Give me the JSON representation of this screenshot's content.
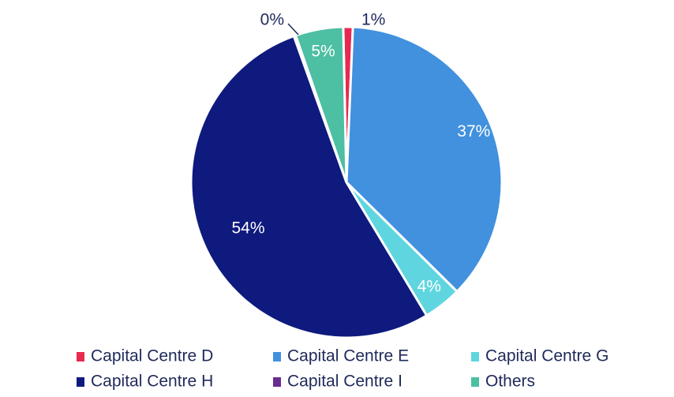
{
  "chart_data": {
    "type": "pie",
    "title": "",
    "slices": [
      {
        "label": "Capital Centre D",
        "value": 1,
        "display": "1%",
        "color": "#e8294f",
        "label_color": "#1f2a5a",
        "label_pos": "outside"
      },
      {
        "label": "Capital Centre E",
        "value": 37,
        "display": "37%",
        "color": "#4191de",
        "label_color": "#ffffff",
        "label_pos": "inside"
      },
      {
        "label": "Capital Centre G",
        "value": 4,
        "display": "4%",
        "color": "#5fd6df",
        "label_color": "#ffffff",
        "label_pos": "inside"
      },
      {
        "label": "Capital Centre H",
        "value": 53.5,
        "display": "54%",
        "color": "#0e1a7e",
        "label_color": "#ffffff",
        "label_pos": "inside"
      },
      {
        "label": "Capital Centre I",
        "value": 0.2,
        "display": "0%",
        "color": "#6a2c91",
        "label_color": "#1f2a5a",
        "label_pos": "outside"
      },
      {
        "label": "Others",
        "value": 5,
        "display": "5%",
        "color": "#4dbfa3",
        "label_color": "#ffffff",
        "label_pos": "inside"
      }
    ],
    "legend": {
      "placement": "bottom",
      "columns": 3
    }
  }
}
